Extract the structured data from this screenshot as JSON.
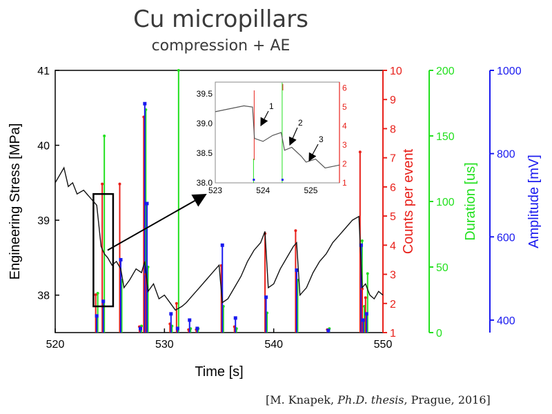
{
  "header": {
    "title": "Cu micropillars",
    "subtitle": "compression + AE"
  },
  "citation": {
    "prefix": "[M. Knapek, ",
    "italic": "Ph.D. thesis",
    "suffix": ", Prague, 2016]"
  },
  "colors": {
    "stress": "#111111",
    "counts": "#e8201a",
    "duration": "#22e01e",
    "amplitude": "#1a1aef",
    "box": "#000000"
  },
  "chart_data": {
    "type": "line",
    "x_axis": {
      "label": "Time [s]",
      "range": [
        520,
        550
      ],
      "ticks": [
        520,
        530,
        540,
        550
      ]
    },
    "y_axes": [
      {
        "name": "stress",
        "label": "Engineering Stress [MPa]",
        "range": [
          37.5,
          41
        ],
        "ticks": [
          38,
          39,
          40,
          41
        ],
        "side": "left"
      },
      {
        "name": "counts",
        "label": "Counts per event",
        "range": [
          1,
          10
        ],
        "ticks": [
          1,
          2,
          3,
          4,
          5,
          6,
          7,
          8,
          9,
          10
        ],
        "side": "right"
      },
      {
        "name": "duration",
        "label": "Duration [us]",
        "range": [
          0,
          200
        ],
        "ticks": [
          0,
          50,
          100,
          150,
          200
        ],
        "side": "right"
      },
      {
        "name": "amplitude",
        "label": "Amplitude [mV]",
        "range": [
          370,
          1000
        ],
        "ticks": [
          400,
          600,
          800,
          1000
        ],
        "side": "right"
      }
    ],
    "stress_series": {
      "x": [
        520,
        520.8,
        521.2,
        521.6,
        522,
        522.6,
        523.2,
        523.8,
        524.2,
        524.5,
        524.8,
        525.2,
        525.6,
        526,
        526.3,
        526.8,
        527.4,
        527.9,
        528.2,
        528.5,
        529,
        529.5,
        530,
        530.5,
        531,
        531.6,
        532,
        532.6,
        533.2,
        533.8,
        534.4,
        535,
        535.3,
        535.8,
        536.4,
        537,
        537.6,
        538.2,
        538.8,
        539.2,
        539.5,
        540,
        540.6,
        541.2,
        541.8,
        542.1,
        542.4,
        543,
        543.6,
        544.2,
        544.8,
        545.4,
        546,
        546.6,
        547.2,
        547.8,
        548.1,
        548.4,
        548.8,
        549.2,
        549.6,
        550
      ],
      "y": [
        39.5,
        39.7,
        39.45,
        39.5,
        39.35,
        39.4,
        39.3,
        39.2,
        38.65,
        38.55,
        38.5,
        38.4,
        38.45,
        38.35,
        38.1,
        38.2,
        38.35,
        38.3,
        38.45,
        38.05,
        38.15,
        37.95,
        38.0,
        37.9,
        37.8,
        37.85,
        37.9,
        38.0,
        38.1,
        38.2,
        38.3,
        38.4,
        37.9,
        37.95,
        38.1,
        38.25,
        38.45,
        38.6,
        38.7,
        38.85,
        38.1,
        38.15,
        38.35,
        38.5,
        38.65,
        38.7,
        38.0,
        38.1,
        38.3,
        38.45,
        38.55,
        38.7,
        38.8,
        38.9,
        39.0,
        39.05,
        38.1,
        38.15,
        38.0,
        37.95,
        38.05,
        38.0
      ]
    },
    "ae_events": [
      {
        "t": 523.8,
        "amplitude": 410,
        "counts": 2.3,
        "duration": 30
      },
      {
        "t": 524.4,
        "amplitude": 445,
        "counts": 6.1,
        "duration": 150
      },
      {
        "t": 526.0,
        "amplitude": 545,
        "counts": 6.1,
        "duration": 40
      },
      {
        "t": 527.8,
        "amplitude": 380,
        "counts": 1.2,
        "duration": 5
      },
      {
        "t": 528.2,
        "amplitude": 920,
        "counts": 8.4,
        "duration": 170
      },
      {
        "t": 528.4,
        "amplitude": 680,
        "counts": 3.0,
        "duration": 50
      },
      {
        "t": 530.6,
        "amplitude": 415,
        "counts": 1.3,
        "duration": 5
      },
      {
        "t": 531.2,
        "amplitude": 380,
        "counts": 2.0,
        "duration": 200
      },
      {
        "t": 532.3,
        "amplitude": 400,
        "counts": 1.1,
        "duration": 3
      },
      {
        "t": 533.0,
        "amplitude": 380,
        "counts": 1.1,
        "duration": 3
      },
      {
        "t": 535.3,
        "amplitude": 580,
        "counts": 3.3,
        "duration": 20
      },
      {
        "t": 536.5,
        "amplitude": 405,
        "counts": 1.2,
        "duration": 3
      },
      {
        "t": 539.3,
        "amplitude": 455,
        "counts": 4.4,
        "duration": 15
      },
      {
        "t": 542.1,
        "amplitude": 520,
        "counts": 4.5,
        "duration": 40
      },
      {
        "t": 545.0,
        "amplitude": 375,
        "counts": 1.1,
        "duration": 3
      },
      {
        "t": 548.0,
        "amplitude": 580,
        "counts": 7.2,
        "duration": 70
      },
      {
        "t": 548.2,
        "amplitude": 400,
        "counts": 2.5,
        "duration": 20
      },
      {
        "t": 548.5,
        "amplitude": 415,
        "counts": 2.2,
        "duration": 45
      }
    ],
    "inset": {
      "x_range": [
        523,
        525.6
      ],
      "x_ticks": [
        523,
        524,
        525
      ],
      "y_range": [
        38.0,
        39.7
      ],
      "y_ticks": [
        38.0,
        38.5,
        39.0,
        39.5
      ],
      "counts_ticks": [
        1,
        2,
        3,
        4,
        5,
        6
      ],
      "stress_x": [
        523,
        523.3,
        523.6,
        523.78,
        523.82,
        524.0,
        524.2,
        524.38,
        524.45,
        524.6,
        524.8,
        524.9,
        525.1,
        525.3,
        525.6
      ],
      "stress_y": [
        39.2,
        39.25,
        39.3,
        39.28,
        38.75,
        38.7,
        38.8,
        38.85,
        38.55,
        38.6,
        38.45,
        38.35,
        38.4,
        38.25,
        38.3
      ],
      "events": [
        {
          "t": 523.8,
          "counts": 2.2
        },
        {
          "t": 524.4,
          "counts": 6.2
        }
      ],
      "annotations": [
        "1",
        "2",
        "3"
      ]
    }
  }
}
